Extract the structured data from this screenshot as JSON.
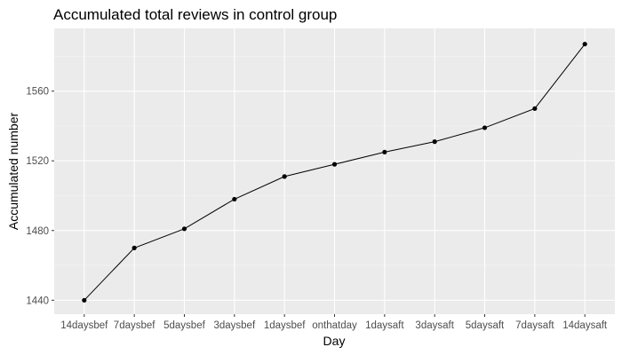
{
  "chart_data": {
    "type": "line",
    "title": "Accumulated total reviews in control group",
    "xlabel": "Day",
    "ylabel": "Accumulated number",
    "categories": [
      "14daysbef",
      "7daysbef",
      "5daysbef",
      "3daysbef",
      "1daysbef",
      "onthatday",
      "1daysaft",
      "3daysaft",
      "5daysaft",
      "7daysaft",
      "14daysaft"
    ],
    "values": [
      1440,
      1470,
      1481,
      1498,
      1511,
      1518,
      1525,
      1531,
      1539,
      1550,
      1587
    ],
    "ylim": [
      1432,
      1596
    ],
    "yticks": [
      1440,
      1480,
      1520,
      1560
    ],
    "grid": true,
    "colors": {
      "panel": "#ebebeb",
      "grid_major": "#ffffff",
      "grid_minor": "#f5f5f5",
      "line": "#000000",
      "point": "#000000",
      "tick_text": "#4d4d4d"
    }
  }
}
